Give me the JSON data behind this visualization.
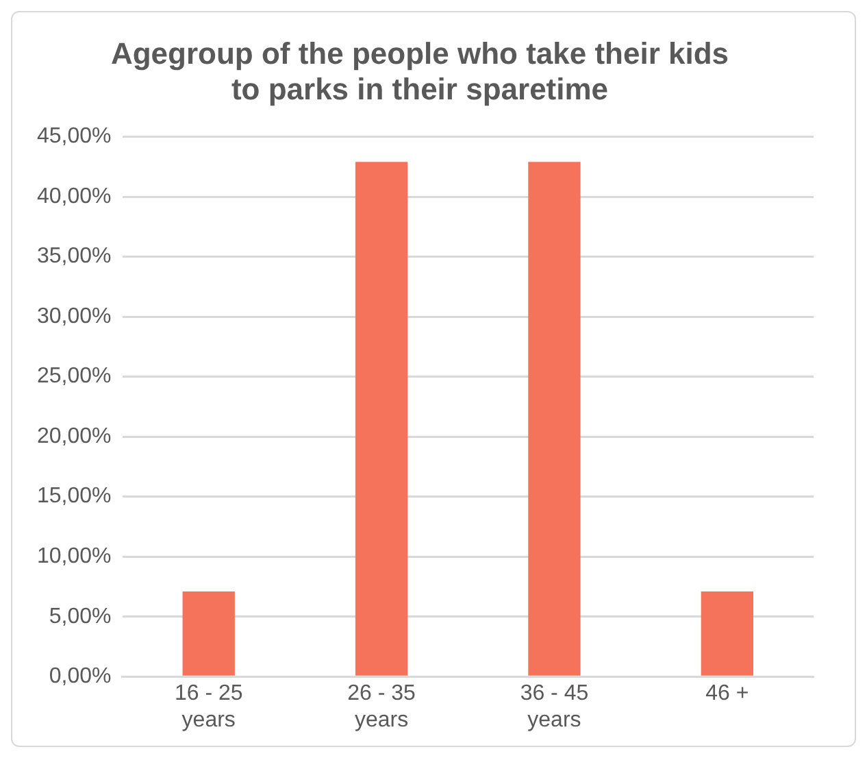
{
  "chart_data": {
    "type": "bar",
    "title": "Agegroup of the people who take their kids to parks in their sparetime",
    "categories": [
      "16 - 25 years",
      "26 - 35 years",
      "36 - 45 years",
      "46 +"
    ],
    "values": [
      7.1,
      42.9,
      42.9,
      7.1
    ],
    "color": "#f4735a",
    "ylim": [
      0,
      45
    ],
    "yticks": [
      {
        "value": 0,
        "label": "0,00%"
      },
      {
        "value": 5,
        "label": "5,00%"
      },
      {
        "value": 10,
        "label": "10,00%"
      },
      {
        "value": 15,
        "label": "15,00%"
      },
      {
        "value": 20,
        "label": "20,00%"
      },
      {
        "value": 25,
        "label": "25,00%"
      },
      {
        "value": 30,
        "label": "30,00%"
      },
      {
        "value": 35,
        "label": "35,00%"
      },
      {
        "value": 40,
        "label": "40,00%"
      },
      {
        "value": 45,
        "label": "45,00%"
      }
    ],
    "grid": "y"
  }
}
